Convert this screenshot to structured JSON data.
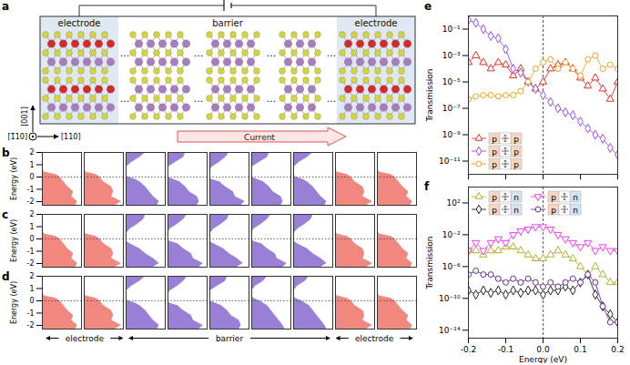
{
  "diagram": {
    "panel": "a",
    "region_labels": [
      "electrode",
      "barrier",
      "electrode"
    ],
    "axes": {
      "vertical": "[001]",
      "out_of_plane": "[1̄10]",
      "horizontal": "[110]"
    },
    "current": "Current",
    "ellipsis": "..."
  },
  "chart_data": [
    {
      "panel": "b",
      "type": "area",
      "orientation": "horizontal",
      "ylabel": "Energy (eV)",
      "ylim": [
        -2.3,
        2
      ],
      "yticks": [
        -2,
        -1,
        0,
        1,
        2
      ],
      "xlim": [
        0,
        1
      ],
      "tick_labels": "y",
      "fermi_level": 0,
      "energy": [
        -2.3,
        -2,
        -1.6,
        -1.2,
        -0.8,
        -0.4,
        -0.2,
        0,
        0.2,
        0.4,
        0.8,
        1.2,
        1.6,
        2
      ],
      "columns": [
        {
          "color": "#f2877f",
          "dos": [
            0.85,
            0.9,
            0.75,
            0.8,
            0.65,
            0.55,
            0.5,
            0.45,
            0.35,
            0.05,
            0,
            0,
            0,
            0
          ]
        },
        {
          "color": "#f2877f",
          "dos": [
            0.8,
            0.95,
            0.7,
            0.75,
            0.7,
            0.5,
            0.45,
            0.4,
            0.3,
            0.04,
            0,
            0,
            0,
            0
          ]
        },
        {
          "color": "#9a7fd6",
          "dos": [
            0.8,
            0.85,
            0.7,
            0.6,
            0.5,
            0.35,
            0.25,
            0.05,
            0,
            0,
            0,
            0.15,
            0.35,
            0.5
          ]
        },
        {
          "color": "#9a7fd6",
          "dos": [
            0.75,
            0.8,
            0.75,
            0.55,
            0.45,
            0.3,
            0.15,
            0,
            0,
            0,
            0,
            0.2,
            0.4,
            0.45
          ]
        },
        {
          "color": "#9a7fd6",
          "dos": [
            0.8,
            0.9,
            0.65,
            0.6,
            0.4,
            0.25,
            0.05,
            0,
            0,
            0,
            0.05,
            0.25,
            0.4,
            0.5
          ]
        },
        {
          "color": "#9a7fd6",
          "dos": [
            0.75,
            0.8,
            0.75,
            0.55,
            0.45,
            0.3,
            0.15,
            0,
            0,
            0,
            0,
            0.2,
            0.4,
            0.45
          ]
        },
        {
          "color": "#9a7fd6",
          "dos": [
            0.8,
            0.85,
            0.7,
            0.6,
            0.5,
            0.35,
            0.25,
            0.05,
            0,
            0,
            0,
            0.15,
            0.35,
            0.5
          ]
        },
        {
          "color": "#f2877f",
          "dos": [
            0.8,
            0.95,
            0.7,
            0.75,
            0.7,
            0.5,
            0.45,
            0.4,
            0.3,
            0.04,
            0,
            0,
            0,
            0
          ]
        },
        {
          "color": "#f2877f",
          "dos": [
            0.85,
            0.9,
            0.75,
            0.8,
            0.65,
            0.55,
            0.5,
            0.45,
            0.35,
            0.05,
            0,
            0,
            0,
            0
          ]
        }
      ]
    },
    {
      "panel": "c",
      "type": "area",
      "orientation": "horizontal",
      "ylabel": "Energy (eV)",
      "ylim": [
        -2.3,
        2
      ],
      "yticks": [
        -2,
        -1,
        0,
        1,
        2
      ],
      "xlim": [
        0,
        1
      ],
      "tick_labels": "y",
      "fermi_level": 0,
      "energy": [
        -2.3,
        -2,
        -1.6,
        -1.2,
        -0.8,
        -0.4,
        -0.2,
        0,
        0.2,
        0.4,
        0.8,
        1.2,
        1.6,
        2
      ],
      "columns": [
        {
          "color": "#f2877f",
          "dos": [
            0.85,
            0.9,
            0.75,
            0.8,
            0.65,
            0.55,
            0.5,
            0.45,
            0.35,
            0.05,
            0,
            0,
            0,
            0
          ]
        },
        {
          "color": "#f2877f",
          "dos": [
            0.8,
            0.95,
            0.7,
            0.75,
            0.7,
            0.5,
            0.45,
            0.4,
            0.3,
            0.04,
            0,
            0,
            0,
            0
          ]
        },
        {
          "color": "#9a7fd6",
          "dos": [
            0.7,
            0.85,
            0.7,
            0.5,
            0.35,
            0.1,
            0,
            0,
            0,
            0,
            0.1,
            0.3,
            0.45,
            0.5
          ]
        },
        {
          "color": "#9a7fd6",
          "dos": [
            0.8,
            0.9,
            0.65,
            0.6,
            0.4,
            0.25,
            0.05,
            0,
            0,
            0,
            0.05,
            0.25,
            0.4,
            0.5
          ]
        },
        {
          "color": "#9a7fd6",
          "dos": [
            0.7,
            0.85,
            0.7,
            0.5,
            0.35,
            0.1,
            0,
            0,
            0,
            0,
            0.1,
            0.3,
            0.45,
            0.5
          ]
        },
        {
          "color": "#9a7fd6",
          "dos": [
            0.8,
            0.9,
            0.65,
            0.6,
            0.4,
            0.25,
            0.05,
            0,
            0,
            0,
            0.05,
            0.25,
            0.4,
            0.5
          ]
        },
        {
          "color": "#9a7fd6",
          "dos": [
            0.7,
            0.85,
            0.7,
            0.5,
            0.35,
            0.1,
            0,
            0,
            0,
            0,
            0.1,
            0.3,
            0.45,
            0.5
          ]
        },
        {
          "color": "#f2877f",
          "dos": [
            0.8,
            0.95,
            0.7,
            0.75,
            0.7,
            0.5,
            0.45,
            0.4,
            0.3,
            0.04,
            0,
            0,
            0,
            0
          ]
        },
        {
          "color": "#f2877f",
          "dos": [
            0.85,
            0.9,
            0.75,
            0.8,
            0.65,
            0.55,
            0.5,
            0.45,
            0.35,
            0.05,
            0,
            0,
            0,
            0
          ]
        }
      ]
    },
    {
      "panel": "d",
      "type": "area",
      "orientation": "horizontal",
      "ylabel": "Energy (eV)",
      "ylim": [
        -2.3,
        2
      ],
      "yticks": [
        -2,
        -1,
        0,
        1,
        2
      ],
      "xlim": [
        0,
        1
      ],
      "tick_labels": "y",
      "fermi_level": 0,
      "energy": [
        -2.3,
        -2,
        -1.6,
        -1.2,
        -0.8,
        -0.4,
        -0.2,
        0,
        0.2,
        0.4,
        0.8,
        1.2,
        1.6,
        2
      ],
      "columns": [
        {
          "color": "#f2877f",
          "dos": [
            0.85,
            0.9,
            0.75,
            0.8,
            0.65,
            0.55,
            0.5,
            0.45,
            0.35,
            0.05,
            0,
            0,
            0,
            0
          ]
        },
        {
          "color": "#f2877f",
          "dos": [
            0.8,
            0.95,
            0.7,
            0.75,
            0.7,
            0.5,
            0.45,
            0.4,
            0.3,
            0.04,
            0,
            0,
            0,
            0
          ]
        },
        {
          "color": "#9a7fd6",
          "dos": [
            0.8,
            0.85,
            0.7,
            0.6,
            0.5,
            0.35,
            0.25,
            0.05,
            0,
            0,
            0,
            0.15,
            0.35,
            0.5
          ]
        },
        {
          "color": "#9a7fd6",
          "dos": [
            0.8,
            0.9,
            0.65,
            0.6,
            0.4,
            0.25,
            0.05,
            0,
            0,
            0,
            0.05,
            0.25,
            0.4,
            0.5
          ]
        },
        {
          "color": "#9a7fd6",
          "dos": [
            0.75,
            0.8,
            0.75,
            0.55,
            0.45,
            0.3,
            0.15,
            0,
            0,
            0,
            0,
            0.2,
            0.4,
            0.45
          ]
        },
        {
          "color": "#9a7fd6",
          "dos": [
            0.85,
            0.8,
            0.7,
            0.6,
            0.5,
            0.4,
            0.3,
            0.2,
            0.05,
            0,
            0,
            0.1,
            0.3,
            0.4
          ]
        },
        {
          "color": "#9a7fd6",
          "dos": [
            0.85,
            0.8,
            0.7,
            0.6,
            0.5,
            0.4,
            0.3,
            0.2,
            0.05,
            0,
            0,
            0.1,
            0.3,
            0.4
          ]
        },
        {
          "color": "#f2877f",
          "dos": [
            0.8,
            0.95,
            0.7,
            0.75,
            0.7,
            0.5,
            0.45,
            0.4,
            0.3,
            0.04,
            0,
            0,
            0,
            0
          ]
        },
        {
          "color": "#f2877f",
          "dos": [
            0.85,
            0.9,
            0.75,
            0.8,
            0.65,
            0.55,
            0.5,
            0.45,
            0.35,
            0.05,
            0,
            0,
            0,
            0
          ]
        }
      ],
      "group_labels": [
        {
          "label": "electrode",
          "columns": [
            0,
            1
          ]
        },
        {
          "label": "barrier",
          "columns": [
            2,
            3,
            4,
            5,
            6
          ]
        },
        {
          "label": "electrode",
          "columns": [
            7,
            8
          ]
        }
      ]
    },
    {
      "panel": "e",
      "type": "line",
      "ylabel": "Transmission",
      "log": "y",
      "ylim": [
        1e-12,
        1
      ],
      "yticks": [
        {
          "value": 0.1,
          "label": "10⁻¹"
        },
        {
          "value": 0.001,
          "label": "10⁻³"
        },
        {
          "value": 1e-05,
          "label": "10⁻⁵"
        },
        {
          "value": 1e-07,
          "label": "10⁻⁷"
        },
        {
          "value": 1e-09,
          "label": "10⁻⁹"
        },
        {
          "value": 1e-11,
          "label": "10⁻¹¹"
        }
      ],
      "xlim": [
        -0.2,
        0.2
      ],
      "xticks": [
        -0.2,
        -0.1,
        {
          "value": 0,
          "label": "0.0"
        },
        0.1,
        0.2
      ],
      "tick_labels": "y",
      "vline": 0,
      "legend": "lower left",
      "x": [
        -0.2,
        -0.18,
        -0.16,
        -0.14,
        -0.12,
        -0.1,
        -0.08,
        -0.06,
        -0.04,
        -0.02,
        0,
        0.02,
        0.04,
        0.06,
        0.08,
        0.1,
        0.12,
        0.14,
        0.16,
        0.18,
        0.2
      ],
      "series": [
        {
          "color": "#e4302a",
          "marker": "triangle",
          "line_style": "solid",
          "electrodes": [
            {
              "label": "p",
              "color": "#f6d5c3"
            },
            {
              "label": "p",
              "color": "#f6d5c3"
            }
          ],
          "values": [
            0.0003,
            0.001,
            0.0003,
            0.0001,
            0.0003,
            0.0002,
            3e-05,
            0.0001,
            1e-05,
            3e-06,
            1e-05,
            0.0001,
            0.0002,
            0.0003,
            0.0001,
            2e-05,
            5e-06,
            2e-05,
            3e-06,
            5e-07,
            1e-05
          ]
        },
        {
          "color": "#9b4fe8",
          "marker": "diamond",
          "line_style": "solid",
          "electrodes": [
            {
              "label": "p",
              "color": "#f6d5c3"
            },
            {
              "label": "p",
              "color": "#f6d5c3"
            }
          ],
          "values": [
            0.5,
            0.3,
            0.1,
            0.03,
            0.02,
            0.003,
            0.0001,
            5e-05,
            1e-05,
            3e-06,
            1e-06,
            3e-07,
            1e-07,
            5e-08,
            3e-08,
            1e-08,
            3e-09,
            1e-09,
            5e-10,
            1e-10,
            3e-11
          ]
        },
        {
          "color": "#f0a020",
          "marker": "circle",
          "line_style": "solid",
          "electrodes": [
            {
              "label": "p",
              "color": "#f6d5c3"
            },
            {
              "label": "p",
              "color": "#f6d5c3"
            }
          ],
          "values": [
            5e-07,
            8e-07,
            1e-06,
            1e-06,
            8e-07,
            1e-06,
            1e-06,
            2e-06,
            1e-05,
            0.0001,
            0.0003,
            0.0005,
            0.0001,
            0.0003,
            0.0001,
            3e-05,
            0.0005,
            0.001,
            0.0001,
            0.0002,
            0.0001
          ]
        }
      ]
    },
    {
      "panel": "f",
      "type": "line",
      "ylabel": "Transmission",
      "xlabel": "Energy (eV)",
      "log": "y",
      "ylim": [
        1e-15,
        10000.0
      ],
      "yticks": [
        {
          "value": 100.0,
          "label": "10²"
        },
        {
          "value": 0.01,
          "label": "10⁻²"
        },
        {
          "value": 1e-06,
          "label": "10⁻⁶"
        },
        {
          "value": 1e-10,
          "label": "10⁻¹⁰"
        },
        {
          "value": 1e-14,
          "label": "10⁻¹⁴"
        }
      ],
      "xlim": [
        -0.2,
        0.2
      ],
      "xticks": [
        -0.2,
        -0.1,
        {
          "value": 0,
          "label": "0.0"
        },
        0.1,
        0.2
      ],
      "vline": 0,
      "legend": "upper left",
      "x": [
        -0.2,
        -0.18,
        -0.16,
        -0.14,
        -0.12,
        -0.1,
        -0.08,
        -0.06,
        -0.04,
        -0.02,
        0,
        0.02,
        0.04,
        0.06,
        0.08,
        0.1,
        0.12,
        0.14,
        0.16,
        0.18,
        0.2
      ],
      "series": [
        {
          "color": "#b3b02e",
          "marker": "triangle",
          "line_style": "solid",
          "electrodes": [
            {
              "label": "p",
              "color": "#f6d5c3"
            },
            {
              "label": "n",
              "color": "#d5e2f1"
            }
          ],
          "values": [
            0.0001,
            0.0001,
            3e-05,
            0.0001,
            0.0001,
            0.0003,
            0.0003,
            0.0001,
            3e-05,
            1e-05,
            1e-05,
            3e-05,
            0.0001,
            3e-05,
            1e-05,
            1e-06,
            1e-07,
            1e-06,
            1e-07,
            1e-08,
            1e-08
          ]
        },
        {
          "color": "#f03cf0",
          "marker": "triangle-down",
          "line_style": "solid",
          "electrodes": [
            {
              "label": "p",
              "color": "#f6d5c3"
            },
            {
              "label": "n",
              "color": "#d5e2f1"
            }
          ],
          "values": [
            0.0001,
            0.001,
            0.0001,
            0.001,
            0.003,
            0.001,
            0.01,
            0.03,
            0.05,
            0.1,
            0.1,
            0.05,
            0.01,
            0.003,
            0.001,
            0.0003,
            0.001,
            0.0001,
            0.0003,
            0.0001,
            0.0001
          ]
        },
        {
          "color": "#222222",
          "marker": "diamond",
          "line_style": "solid",
          "electrodes": [
            {
              "label": "p",
              "color": "#f6d5c3"
            },
            {
              "label": "n",
              "color": "#d5e2f1"
            }
          ],
          "values": [
            1e-09,
            3e-10,
            1e-09,
            5e-10,
            1e-09,
            3e-10,
            1e-09,
            5e-10,
            1e-09,
            1e-09,
            3e-10,
            1e-09,
            1e-09,
            3e-09,
            1e-09,
            1e-08,
            1e-07,
            3e-10,
            1e-11,
            1e-12,
            1e-13
          ]
        },
        {
          "color": "#6a2c8c",
          "marker": "circle",
          "line_style": "solid",
          "electrodes": [
            {
              "label": "p",
              "color": "#f6d5c3"
            },
            {
              "label": "n",
              "color": "#d5e2f1"
            }
          ],
          "values": [
            1e-07,
            3e-07,
            1e-07,
            1e-07,
            3e-08,
            1e-08,
            3e-08,
            1e-08,
            3e-08,
            1e-08,
            3e-09,
            1e-08,
            3e-09,
            1e-08,
            3e-08,
            1e-08,
            1e-07,
            1e-08,
            1e-11,
            1e-13,
            1e-13
          ]
        }
      ]
    }
  ]
}
